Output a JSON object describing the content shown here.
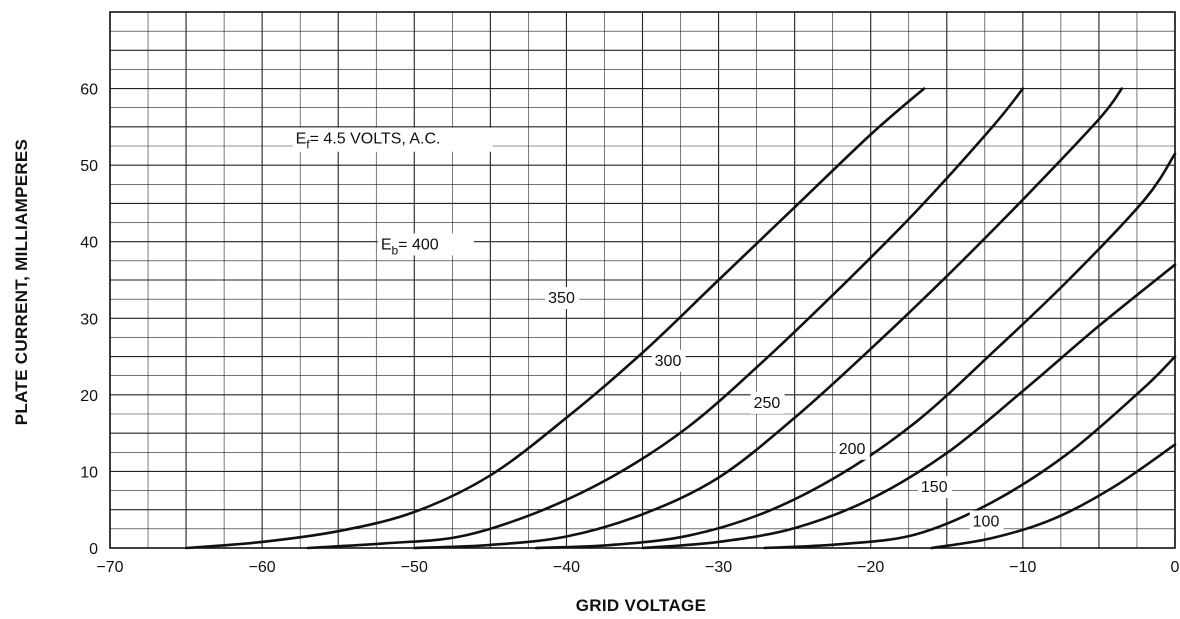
{
  "chart_data": {
    "type": "line",
    "xlabel": "GRID VOLTAGE",
    "ylabel": "PLATE CURRENT, MILLIAMPERES",
    "xlim": [
      -70,
      0
    ],
    "ylim": [
      0,
      70
    ],
    "x_ticks": [
      "−70",
      "−60",
      "−50",
      "−40",
      "−30",
      "−20",
      "−10",
      "0"
    ],
    "y_ticks": [
      "0",
      "10",
      "20",
      "30",
      "40",
      "50",
      "60"
    ],
    "grid": true,
    "annotation": {
      "prefix": "E",
      "subscript": "f",
      "text": "= 4.5  VOLTS, A.C."
    },
    "series_label_prefix": {
      "prefix": "E",
      "subscript": "b",
      "eq": "="
    },
    "series": [
      {
        "name": "400",
        "x": [
          -65,
          -60,
          -55,
          -50,
          -45,
          -40,
          -35,
          -30,
          -25,
          -20,
          -16.5
        ],
        "y": [
          0,
          0.8,
          2.2,
          4.7,
          9.5,
          17,
          25.5,
          35,
          44.5,
          54,
          60
        ]
      },
      {
        "name": "350",
        "x": [
          -57,
          -52,
          -47,
          -42,
          -37,
          -32,
          -27,
          -22,
          -17,
          -12,
          -10
        ],
        "y": [
          0,
          0.6,
          1.5,
          4.6,
          9.3,
          15.8,
          24.5,
          34,
          44,
          55,
          60
        ]
      },
      {
        "name": "300",
        "x": [
          -50,
          -45,
          -40,
          -35,
          -30,
          -25,
          -20,
          -15,
          -10,
          -5,
          -3.5
        ],
        "y": [
          0,
          0.4,
          1.5,
          4.4,
          9.2,
          17,
          26,
          35.5,
          45.5,
          56,
          60
        ]
      },
      {
        "name": "250",
        "x": [
          -42,
          -37,
          -32,
          -27,
          -22,
          -17,
          -12,
          -7,
          -2,
          0
        ],
        "y": [
          0,
          0.4,
          1.6,
          4.6,
          9.6,
          16.5,
          25.5,
          35,
          45.5,
          51.5
        ]
      },
      {
        "name": "200",
        "x": [
          -35,
          -30,
          -25,
          -20,
          -15,
          -10,
          -5,
          0
        ],
        "y": [
          0,
          0.8,
          2.6,
          6.4,
          12.4,
          20.5,
          29,
          37
        ]
      },
      {
        "name": "150",
        "x": [
          -27,
          -22,
          -17,
          -12,
          -7,
          -2,
          0
        ],
        "y": [
          0,
          0.5,
          1.8,
          6,
          12.4,
          21,
          25
        ]
      },
      {
        "name": "100",
        "x": [
          -16,
          -12,
          -8,
          -4,
          0
        ],
        "y": [
          0,
          1.3,
          3.8,
          8,
          13.5
        ]
      }
    ],
    "series_label_positions": [
      {
        "name": "400",
        "x": -52.2,
        "y": 39
      },
      {
        "name": "350",
        "x": -41.2,
        "y": 32
      },
      {
        "name": "300",
        "x": -34.2,
        "y": 23.8
      },
      {
        "name": "250",
        "x": -27.7,
        "y": 18.3
      },
      {
        "name": "200",
        "x": -22.1,
        "y": 12.3
      },
      {
        "name": "150",
        "x": -16.7,
        "y": 7.3
      },
      {
        "name": "100",
        "x": -13.3,
        "y": 2.8
      }
    ],
    "annotation_position": {
      "x": -57.8,
      "y": 52.8
    }
  }
}
